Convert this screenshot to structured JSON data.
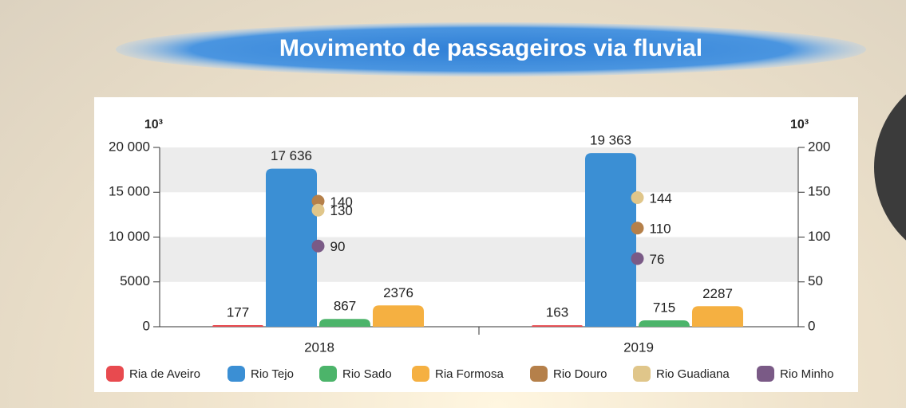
{
  "chart_data": {
    "type": "bar",
    "title": "Movimento de passageiros via fluvial",
    "y_unit": "10³",
    "y2_unit": "10³",
    "categories": [
      "2018",
      "2019"
    ],
    "ylim": [
      0,
      20000
    ],
    "yticks": [
      0,
      5000,
      {
        "value": 10000,
        "label": "10 000"
      },
      {
        "value": 15000,
        "label": "15 000"
      },
      {
        "value": 20000,
        "label": "20 000"
      }
    ],
    "y2lim": [
      0,
      200
    ],
    "y2ticks": [
      0,
      50,
      100,
      150,
      200
    ],
    "grid": true,
    "series": [
      {
        "name": "Ria de Aveiro",
        "color": "#e84a4f",
        "values": [
          177,
          163
        ]
      },
      {
        "name": "Rio Tejo",
        "color": "#3b8fd4",
        "values": [
          17636,
          19363
        ],
        "value_labels": [
          "17 636",
          "19 363"
        ]
      },
      {
        "name": "Rio Sado",
        "color": "#4cb46a",
        "values": [
          867,
          715
        ]
      },
      {
        "name": "Ria Formosa",
        "color": "#f5b041",
        "values": [
          2376,
          2287
        ]
      },
      {
        "name": "Rio Douro",
        "color": "#b5804a",
        "axis": "y2",
        "values": [
          140,
          110
        ]
      },
      {
        "name": "Rio Guadiana",
        "color": "#e0c68a",
        "axis": "y2",
        "values": [
          130,
          144
        ]
      },
      {
        "name": "Rio Minho",
        "color": "#7a5a86",
        "axis": "y2",
        "values": [
          90,
          76
        ]
      }
    ]
  }
}
